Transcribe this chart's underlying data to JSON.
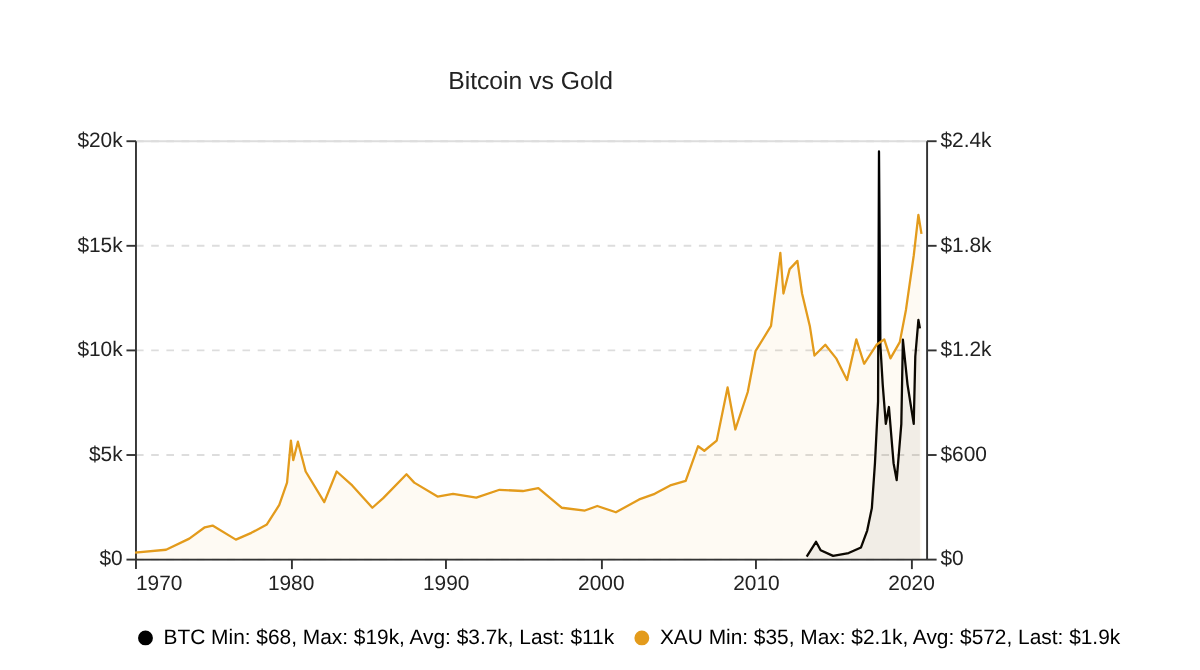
{
  "chart_data": {
    "type": "area",
    "title": "Bitcoin vs Gold",
    "xlim": [
      1970,
      2021
    ],
    "xticks": [
      1970,
      1980,
      1990,
      2000,
      2010,
      2020
    ],
    "ylim": [
      0,
      20000
    ],
    "yticks": [
      {
        "value": 0,
        "label": "$0"
      },
      {
        "value": 5000,
        "label": "$5k"
      },
      {
        "value": 10000,
        "label": "$10k"
      },
      {
        "value": 15000,
        "label": "$15k"
      },
      {
        "value": 20000,
        "label": "$20k"
      }
    ],
    "y2lim": [
      0,
      2400
    ],
    "y2ticks": [
      {
        "value": 0,
        "label": "$0"
      },
      {
        "value": 600,
        "label": "$600"
      },
      {
        "value": 1200,
        "label": "$1.2k"
      },
      {
        "value": 1800,
        "label": "$1.8k"
      },
      {
        "value": 2400,
        "label": "$2.4k"
      }
    ],
    "grid": "y",
    "legend": "bottom",
    "line_style": "solid",
    "series": [
      {
        "name": "BTC Min: $68, Max: $19k, Avg: $3.7k, Last: $11k",
        "color": "#000000",
        "axis": "y",
        "x": [
          2013.3,
          2013.9,
          2014.2,
          2015,
          2016,
          2016.8,
          2017.2,
          2017.5,
          2017.7,
          2017.9,
          2017.96,
          2018.05,
          2018.2,
          2018.4,
          2018.6,
          2018.9,
          2019.1,
          2019.4,
          2019.5,
          2019.8,
          2020.0,
          2020.2,
          2020.3,
          2020.5,
          2020.6
        ],
        "values": [
          100,
          805,
          403,
          134,
          268,
          537,
          1342,
          2416,
          4564,
          7517,
          19463,
          10201,
          8322,
          6443,
          7248,
          4564,
          3758,
          6443,
          10470,
          8322,
          7383,
          6443,
          9664,
          11409,
          11006
        ]
      },
      {
        "name": "XAU Min: $35, Max: $2.1k, Avg: $572, Last: $1.9k",
        "color": "#e39b1c",
        "axis": "y2",
        "x": [
          1970,
          1972,
          1973.5,
          1974.5,
          1975,
          1976.5,
          1977.5,
          1978.5,
          1979.3,
          1979.8,
          1980.05,
          1980.2,
          1980.5,
          1981,
          1982.2,
          1983,
          1984,
          1985.3,
          1986,
          1987.5,
          1988,
          1989.5,
          1990.5,
          1992,
          1993.5,
          1995,
          1996,
          1997.5,
          1999,
          1999.8,
          2001,
          2002.5,
          2003.5,
          2004.5,
          2005.5,
          2006.3,
          2006.7,
          2007.5,
          2008.2,
          2008.7,
          2009.5,
          2010,
          2011,
          2011.6,
          2011.8,
          2012.2,
          2012.7,
          2013.0,
          2013.5,
          2013.8,
          2014.5,
          2015.2,
          2015.9,
          2016.5,
          2017,
          2017.8,
          2018.3,
          2018.7,
          2019.3,
          2019.7,
          2020.2,
          2020.5,
          2020.7
        ],
        "values": [
          35,
          51,
          115,
          180,
          190,
          109,
          148,
          196,
          308,
          436,
          677,
          565,
          671,
          500,
          324,
          500,
          420,
          292,
          347,
          484,
          436,
          356,
          372,
          350,
          395,
          388,
          404,
          292,
          276,
          302,
          266,
          340,
          372,
          420,
          446,
          645,
          619,
          677,
          982,
          741,
          956,
          1190,
          1335,
          1754,
          1521,
          1661,
          1708,
          1521,
          1335,
          1165,
          1227,
          1149,
          1025,
          1258,
          1118,
          1227,
          1258,
          1149,
          1242,
          1428,
          1739,
          1972,
          1863
        ]
      }
    ]
  }
}
